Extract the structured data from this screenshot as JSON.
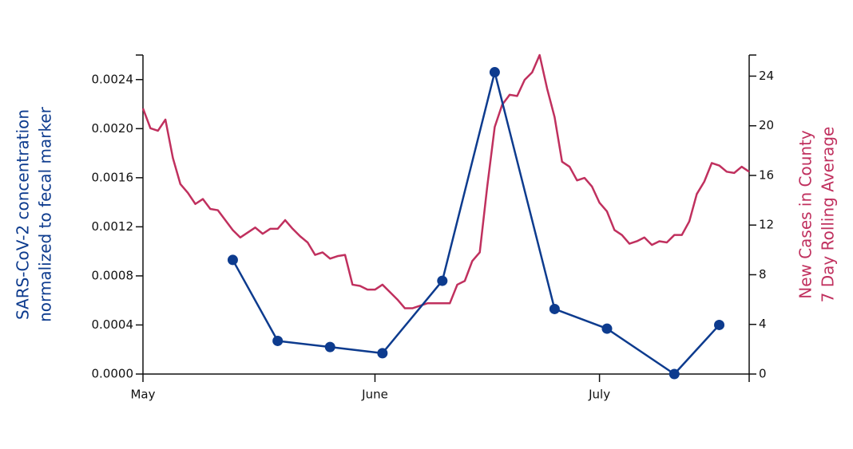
{
  "chart_data": {
    "type": "line",
    "y_label": [
      "SARS-CoV-2 concentration",
      "normalized to fecal marker"
    ],
    "y2_label": [
      "New Cases in County",
      "7 Day Rolling Average"
    ],
    "xlim": [
      0,
      81
    ],
    "xticks": [
      {
        "value": 0,
        "label": "May"
      },
      {
        "value": 31,
        "label": "June"
      },
      {
        "value": 61,
        "label": "July"
      }
    ],
    "ylim": [
      0,
      0.0026
    ],
    "yticks": [
      {
        "value": 0,
        "label": "0.0000"
      },
      {
        "value": 0.0004,
        "label": "0.0004"
      },
      {
        "value": 0.0008,
        "label": "0.0008"
      },
      {
        "value": 0.0012,
        "label": "0.0012"
      },
      {
        "value": 0.0016,
        "label": "0.0016"
      },
      {
        "value": 0.002,
        "label": "0.0020"
      },
      {
        "value": 0.0024,
        "label": "0.0024"
      }
    ],
    "y2lim": [
      0,
      25.7
    ],
    "y2ticks": [
      0,
      4,
      8,
      12,
      16,
      20,
      24
    ],
    "series": [
      {
        "axis": "y2",
        "color": "#c0305e",
        "markers": false,
        "x": [
          0,
          1,
          2,
          3,
          4,
          5,
          6,
          7,
          8,
          9,
          10,
          11,
          12,
          13,
          14,
          15,
          16,
          17,
          18,
          19,
          20,
          21,
          22,
          23,
          24,
          25,
          26,
          27,
          28,
          29,
          30,
          31,
          32,
          33,
          34,
          35,
          36,
          37,
          38,
          39,
          40,
          41,
          42,
          43,
          44,
          45,
          46,
          47,
          48,
          49,
          50,
          51,
          52,
          53,
          54,
          55,
          56,
          57,
          58,
          59,
          60,
          61,
          62,
          63,
          64,
          65,
          66,
          67,
          68,
          69,
          70,
          71,
          72,
          73,
          74,
          75,
          76,
          77,
          78,
          79,
          80,
          81
        ],
        "values": [
          21.4,
          19.8,
          19.6,
          20.5,
          17.4,
          15.3,
          14.6,
          13.7,
          14.1,
          13.3,
          13.2,
          12.4,
          11.6,
          11.0,
          11.4,
          11.8,
          11.3,
          11.7,
          11.7,
          12.4,
          11.7,
          11.1,
          10.6,
          9.6,
          9.8,
          9.3,
          9.5,
          9.6,
          7.2,
          7.1,
          6.8,
          6.8,
          7.2,
          6.6,
          6.0,
          5.3,
          5.3,
          5.5,
          5.7,
          5.7,
          5.7,
          5.7,
          7.2,
          7.5,
          9.1,
          9.8,
          15.1,
          19.9,
          21.7,
          22.5,
          22.4,
          23.7,
          24.3,
          25.7,
          23.0,
          20.7,
          17.1,
          16.7,
          15.6,
          15.8,
          15.1,
          13.8,
          13.1,
          11.6,
          11.2,
          10.5,
          10.7,
          11.0,
          10.4,
          10.7,
          10.6,
          11.2,
          11.2,
          12.3,
          14.5,
          15.5,
          17.0,
          16.8,
          16.3,
          16.2,
          16.7,
          16.3
        ]
      },
      {
        "axis": "y",
        "color": "#0d3b8e",
        "markers": true,
        "x": [
          12,
          18,
          25,
          32,
          40,
          47,
          55,
          62,
          71,
          77
        ],
        "values": [
          0.00093,
          0.00027,
          0.00022,
          0.00017,
          0.00076,
          0.00246,
          0.00053,
          0.00037,
          0.0,
          0.0004
        ]
      }
    ]
  }
}
